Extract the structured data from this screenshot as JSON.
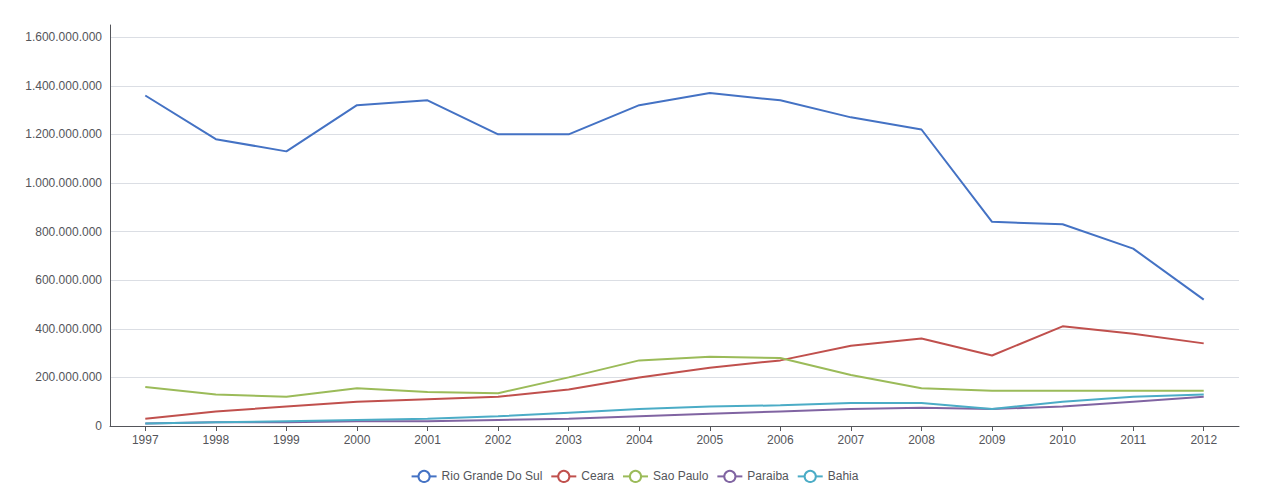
{
  "chart_data": {
    "type": "line",
    "x": [
      1997,
      1998,
      1999,
      2000,
      2001,
      2002,
      2003,
      2004,
      2005,
      2006,
      2007,
      2008,
      2009,
      2010,
      2011,
      2012
    ],
    "series": [
      {
        "name": "Rio Grande Do Sul",
        "color": "#4472C4",
        "values": [
          1360000000,
          1180000000,
          1130000000,
          1320000000,
          1340000000,
          1200000000,
          1200000000,
          1320000000,
          1370000000,
          1340000000,
          1270000000,
          1220000000,
          840000000,
          830000000,
          730000000,
          520000000
        ]
      },
      {
        "name": "Ceara",
        "color": "#C0504D",
        "values": [
          30000000,
          60000000,
          80000000,
          100000000,
          110000000,
          120000000,
          150000000,
          200000000,
          240000000,
          270000000,
          330000000,
          360000000,
          290000000,
          410000000,
          380000000,
          340000000
        ]
      },
      {
        "name": "Sao Paulo",
        "color": "#9BBB59",
        "values": [
          160000000,
          130000000,
          120000000,
          155000000,
          140000000,
          135000000,
          200000000,
          270000000,
          285000000,
          280000000,
          210000000,
          155000000,
          145000000,
          145000000,
          145000000,
          145000000
        ]
      },
      {
        "name": "Paraiba",
        "color": "#8064A2",
        "values": [
          10000000,
          15000000,
          15000000,
          20000000,
          20000000,
          25000000,
          30000000,
          40000000,
          50000000,
          60000000,
          70000000,
          75000000,
          70000000,
          80000000,
          100000000,
          120000000
        ]
      },
      {
        "name": "Bahia",
        "color": "#4BACC6",
        "values": [
          10000000,
          15000000,
          20000000,
          25000000,
          30000000,
          40000000,
          55000000,
          70000000,
          80000000,
          85000000,
          95000000,
          95000000,
          70000000,
          100000000,
          120000000,
          130000000
        ]
      }
    ],
    "xlim": [
      1996.5,
      2012.5
    ],
    "xticks": [
      1997,
      1998,
      1999,
      2000,
      2001,
      2002,
      2003,
      2004,
      2005,
      2006,
      2007,
      2008,
      2009,
      2010,
      2011,
      2012
    ],
    "ylim": [
      0,
      1650000000
    ],
    "yticks": [
      0,
      {
        "value": 200000000,
        "label": "200.000.000"
      },
      {
        "value": 400000000,
        "label": "400.000.000"
      },
      {
        "value": 600000000,
        "label": "600.000.000"
      },
      {
        "value": 800000000,
        "label": "800.000.000"
      },
      {
        "value": 1000000000,
        "label": "1.000.000.000"
      },
      {
        "value": 1200000000,
        "label": "1.200.000.000"
      },
      {
        "value": 1400000000,
        "label": "1.400.000.000"
      },
      {
        "value": 1600000000,
        "label": "1.600.000.000"
      }
    ],
    "grid": true,
    "legend": "bottom"
  }
}
